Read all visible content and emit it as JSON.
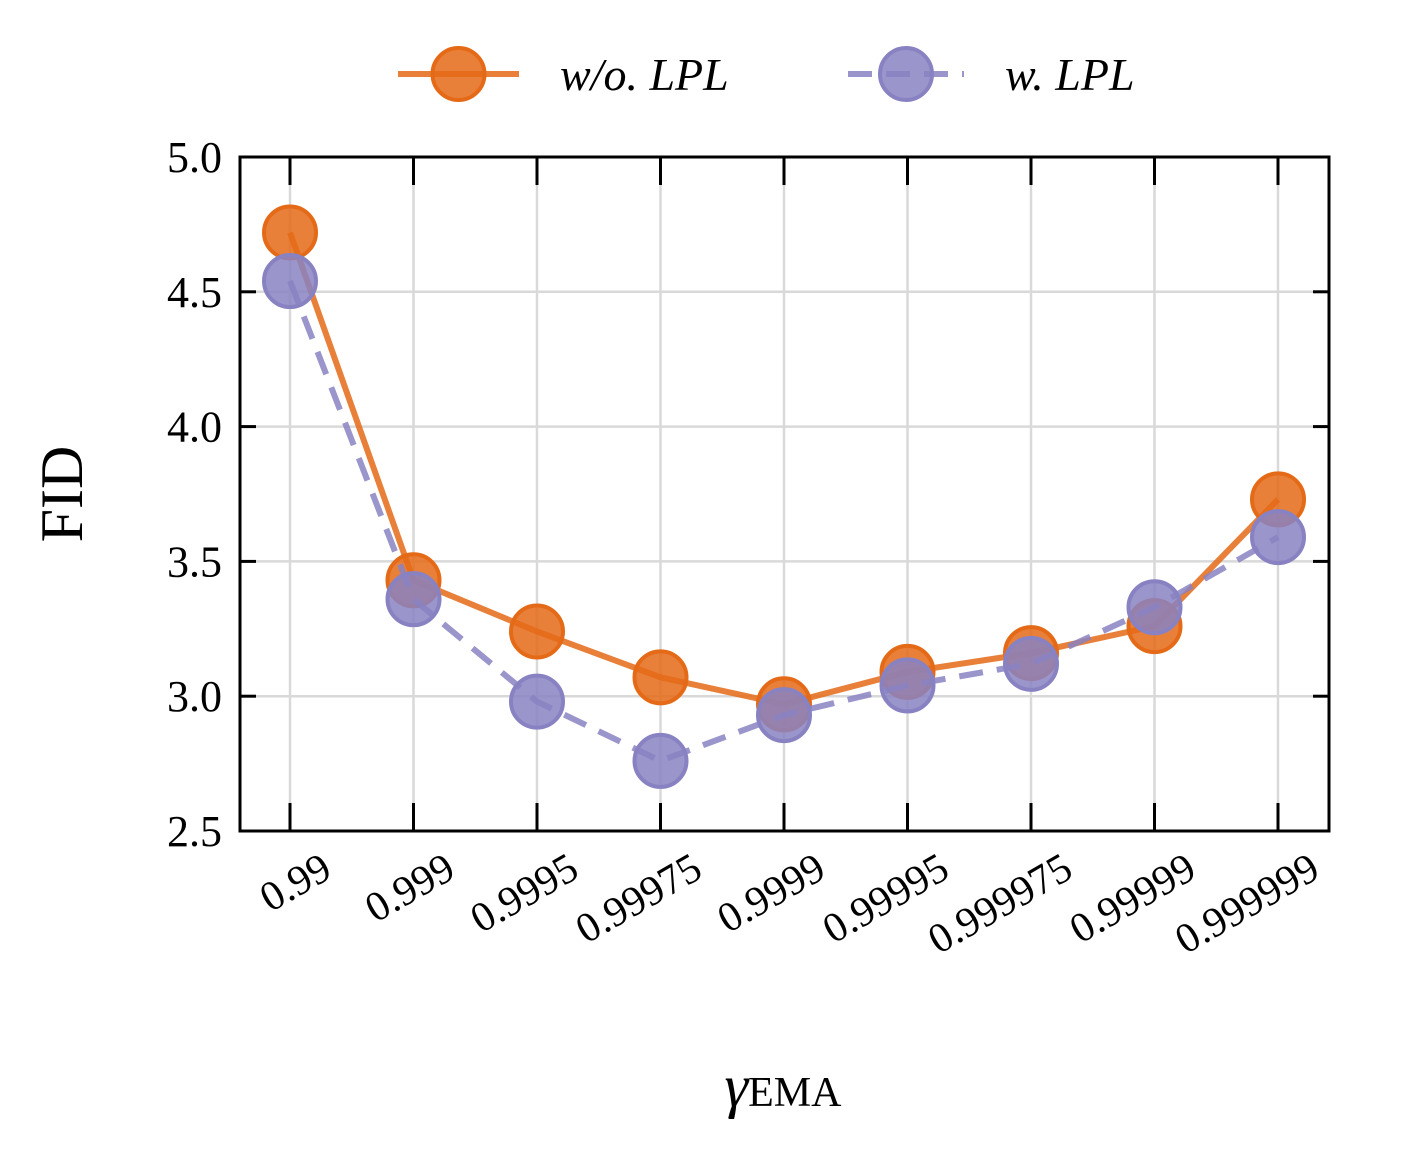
{
  "chart_data": {
    "type": "line",
    "categories": [
      "0.99",
      "0.999",
      "0.9995",
      "0.99975",
      "0.9999",
      "0.99995",
      "0.999975",
      "0.99999",
      "0.999999"
    ],
    "series": [
      {
        "name": "w/o. LPL",
        "color": "#e46a17",
        "line_style": "solid",
        "marker": "circle",
        "values": [
          4.72,
          3.43,
          3.24,
          3.07,
          2.97,
          3.09,
          3.16,
          3.26,
          3.73
        ]
      },
      {
        "name": "w. LPL",
        "color": "#8882c2",
        "line_style": "dashed",
        "marker": "circle",
        "values": [
          4.54,
          3.36,
          2.98,
          2.76,
          2.93,
          3.04,
          3.12,
          3.33,
          3.59
        ]
      }
    ],
    "ylabel": "FID",
    "xlabel": {
      "main": "γ",
      "sub": "EMA"
    },
    "ylim": [
      2.5,
      5.0
    ],
    "yticks": [
      "2.5",
      "3.0",
      "3.5",
      "4.0",
      "4.5",
      "5.0"
    ],
    "grid": true,
    "legend_position": "top-center"
  }
}
